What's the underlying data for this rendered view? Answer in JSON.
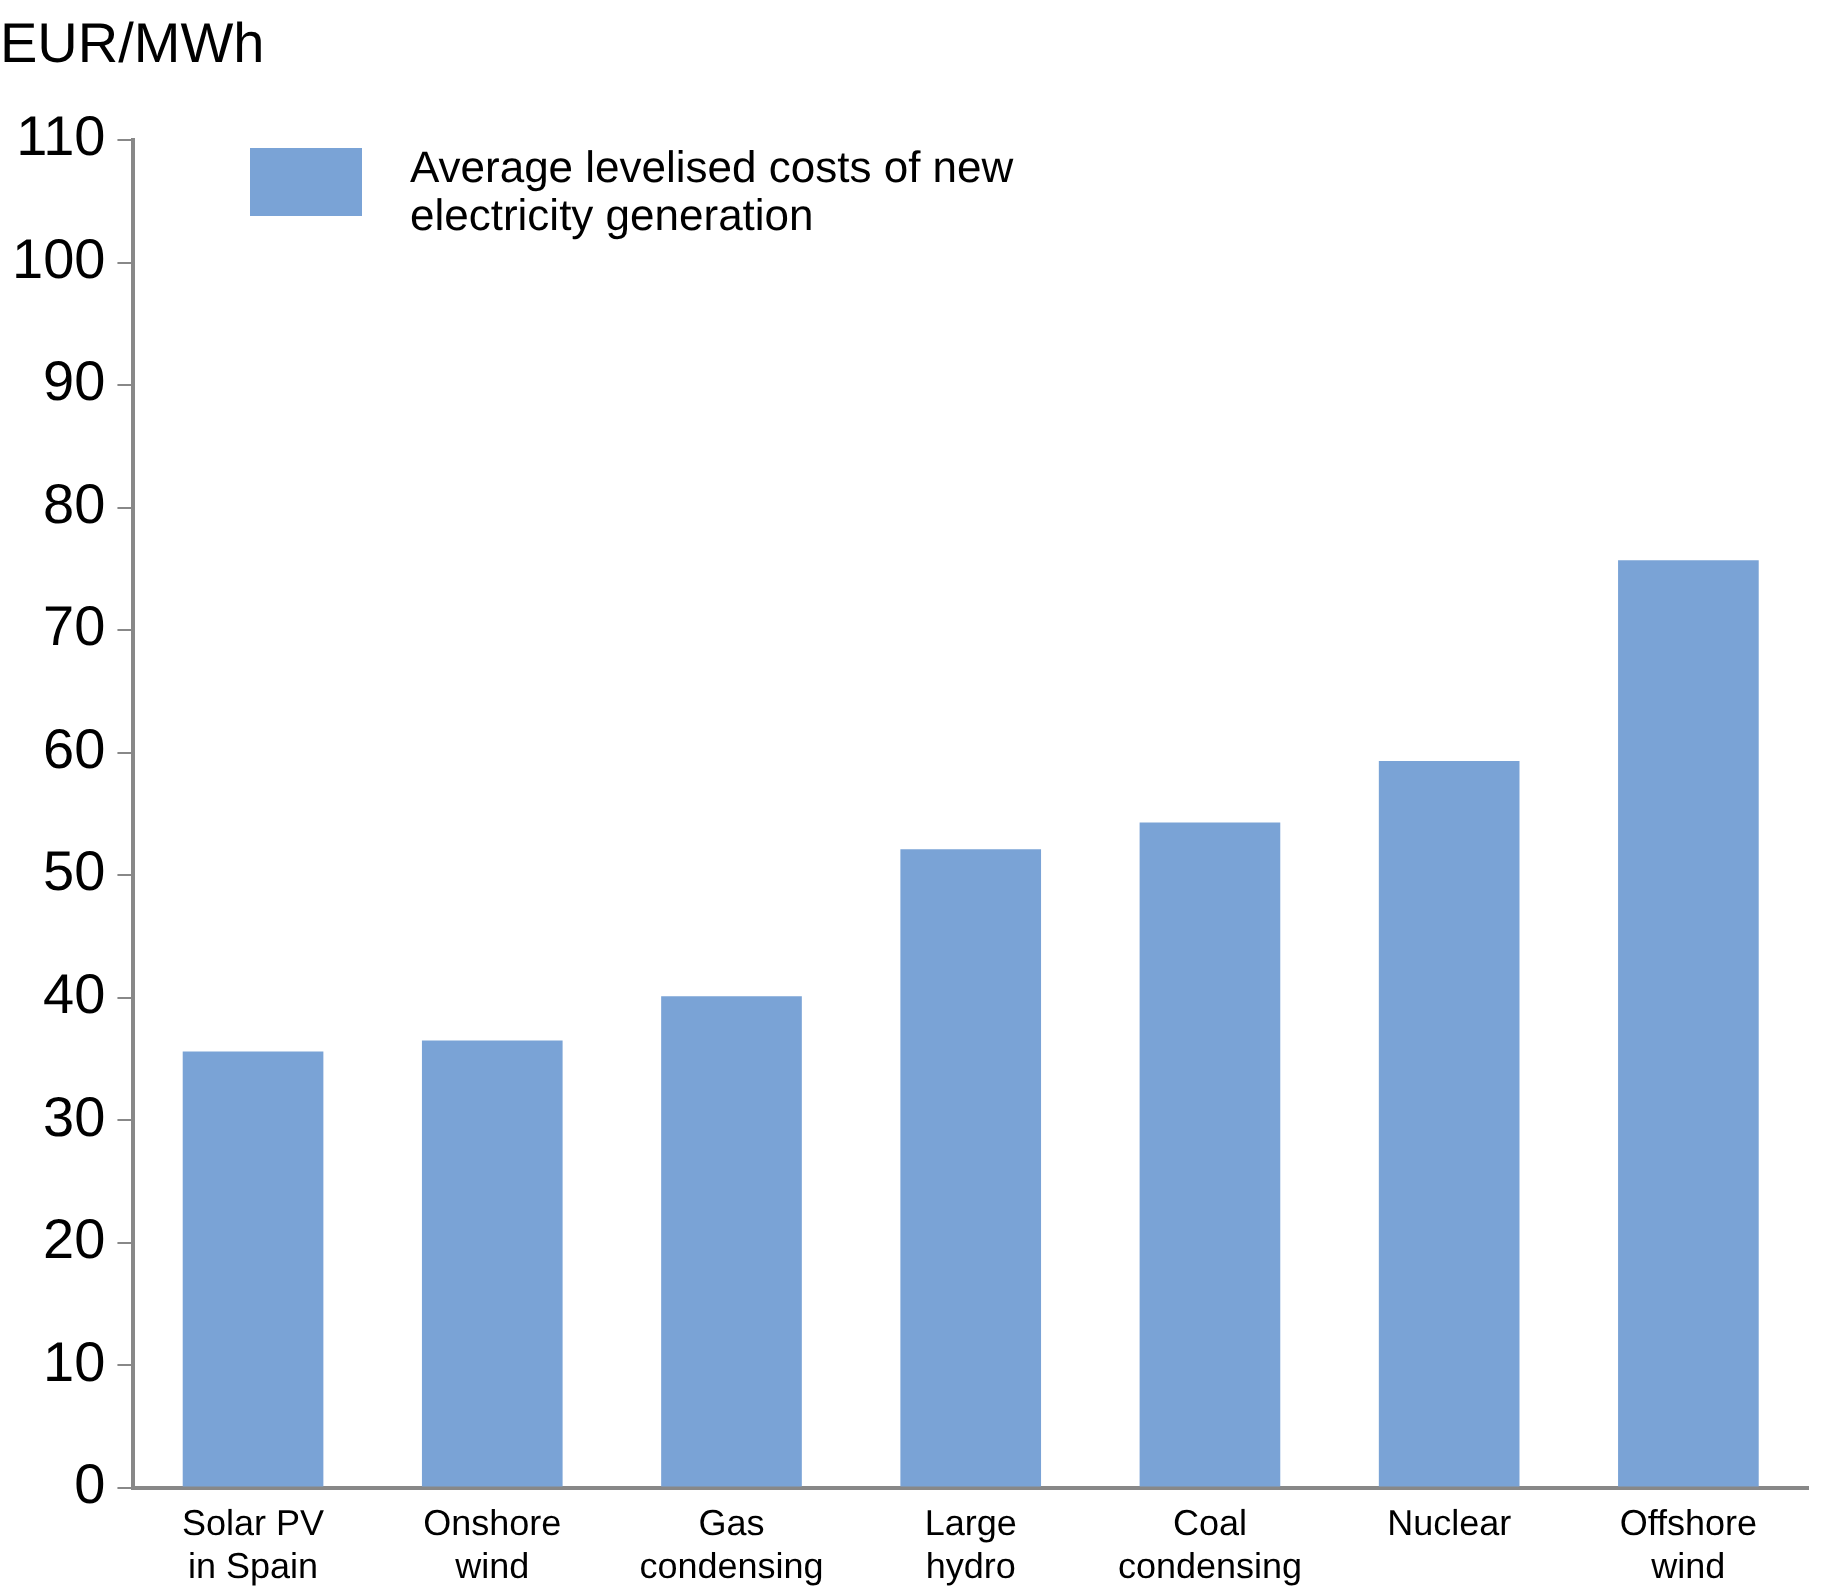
{
  "chart_data": {
    "type": "bar",
    "ylabel": "EUR/MWh",
    "categories": [
      "Solar PV in Spain",
      "Onshore wind",
      "Gas condensing",
      "Large hydro",
      "Coal condensing",
      "Nuclear",
      "Offshore wind"
    ],
    "series": [
      {
        "name": "Average levelised costs of new electricity generation",
        "color": "#7aa3d6",
        "values": [
          35.6,
          36.5,
          40.1,
          52.1,
          54.3,
          59.3,
          75.7
        ]
      }
    ],
    "ylim": [
      0,
      110
    ],
    "yticks": [
      0,
      10,
      20,
      30,
      40,
      50,
      60,
      70,
      80,
      90,
      100,
      110
    ],
    "grid": false,
    "legend": "top left"
  }
}
